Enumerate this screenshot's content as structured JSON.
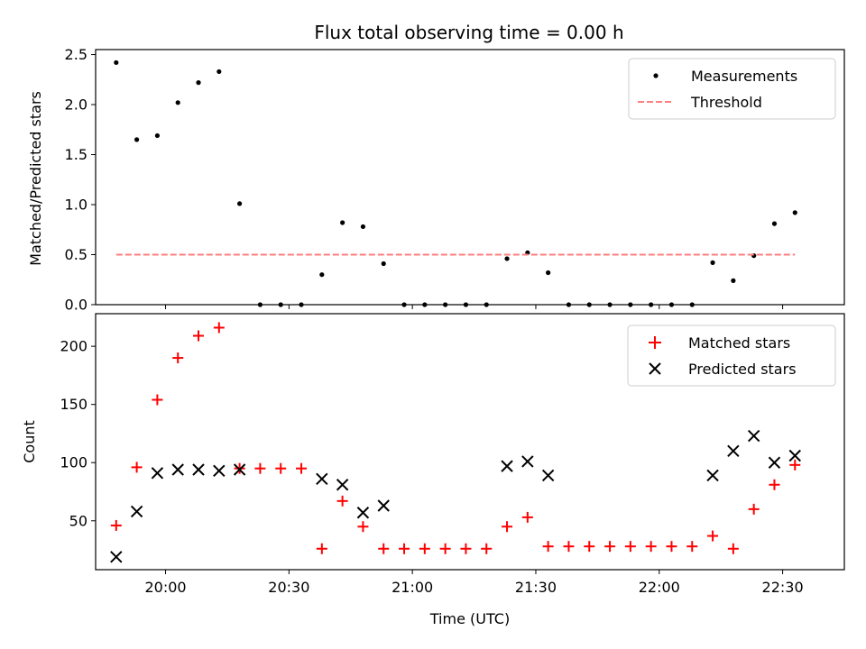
{
  "chart_data": [
    {
      "type": "scatter",
      "title": "Flux total observing time = 0.00 h",
      "ylabel": "Matched/Predicted stars",
      "xlabel": "",
      "xlim": [
        "19:43",
        "22:45"
      ],
      "ylim": [
        0,
        2.55
      ],
      "yticks": [
        0.0,
        0.5,
        1.0,
        1.5,
        2.0,
        2.5
      ],
      "ytick_labels": [
        "0.0",
        "0.5",
        "1.0",
        "1.5",
        "2.0",
        "2.5"
      ],
      "xticks": [
        "20:00",
        "20:30",
        "21:00",
        "21:30",
        "22:00",
        "22:30"
      ],
      "legend_position": "top-right",
      "series": [
        {
          "name": "Measurements",
          "kind": "points",
          "color": "#000000",
          "x": [
            "19:48",
            "19:53",
            "19:58",
            "20:03",
            "20:08",
            "20:13",
            "20:18",
            "20:23",
            "20:28",
            "20:33",
            "20:38",
            "20:43",
            "20:48",
            "20:53",
            "20:58",
            "21:03",
            "21:08",
            "21:13",
            "21:18",
            "21:23",
            "21:28",
            "21:33",
            "21:38",
            "21:43",
            "21:48",
            "21:53",
            "21:58",
            "22:03",
            "22:08",
            "22:13",
            "22:18",
            "22:23",
            "22:28",
            "22:33"
          ],
          "y": [
            2.42,
            1.65,
            1.69,
            2.02,
            2.22,
            2.33,
            1.01,
            0.0,
            0.0,
            0.0,
            0.3,
            0.82,
            0.78,
            0.41,
            0.0,
            0.0,
            0.0,
            0.0,
            0.0,
            0.46,
            0.52,
            0.32,
            0.0,
            0.0,
            0.0,
            0.0,
            0.0,
            0.0,
            0.0,
            0.42,
            0.24,
            0.49,
            0.81,
            0.92
          ]
        },
        {
          "name": "Threshold",
          "kind": "dashed-line",
          "color": "#ff7f7f",
          "x": [
            "19:48",
            "22:33"
          ],
          "y": [
            0.5,
            0.5
          ]
        }
      ]
    },
    {
      "type": "scatter",
      "title": "",
      "ylabel": "Count",
      "xlabel": "Time (UTC)",
      "xlim": [
        "19:43",
        "22:45"
      ],
      "ylim": [
        8,
        228
      ],
      "yticks": [
        50,
        100,
        150,
        200
      ],
      "ytick_labels": [
        "50",
        "100",
        "150",
        "200"
      ],
      "xticks": [
        "20:00",
        "20:30",
        "21:00",
        "21:30",
        "22:00",
        "22:30"
      ],
      "xtick_labels": [
        "20:00",
        "20:30",
        "21:00",
        "21:30",
        "22:00",
        "22:30"
      ],
      "legend_position": "top-right",
      "series": [
        {
          "name": "Matched stars",
          "marker": "plus",
          "color": "#ff0000",
          "x": [
            "19:48",
            "19:53",
            "19:58",
            "20:03",
            "20:08",
            "20:13",
            "20:18",
            "20:23",
            "20:28",
            "20:33",
            "20:38",
            "20:43",
            "20:48",
            "20:53",
            "20:58",
            "21:03",
            "21:08",
            "21:13",
            "21:18",
            "21:23",
            "21:28",
            "21:33",
            "21:38",
            "21:43",
            "21:48",
            "21:53",
            "21:58",
            "22:03",
            "22:08",
            "22:13",
            "22:18",
            "22:23",
            "22:28",
            "22:33"
          ],
          "y": [
            46,
            96,
            154,
            190,
            209,
            216,
            95,
            95,
            95,
            95,
            26,
            67,
            45,
            26,
            26,
            26,
            26,
            26,
            26,
            45,
            53,
            28,
            28,
            28,
            28,
            28,
            28,
            28,
            28,
            37,
            26,
            60,
            81,
            98
          ]
        },
        {
          "name": "Predicted stars",
          "marker": "x",
          "color": "#000000",
          "x": [
            "19:48",
            "19:53",
            "19:58",
            "20:03",
            "20:08",
            "20:13",
            "20:18",
            "20:38",
            "20:43",
            "20:48",
            "20:53",
            "21:23",
            "21:28",
            "21:33",
            "22:13",
            "22:18",
            "22:23",
            "22:28",
            "22:33"
          ],
          "y": [
            19,
            58,
            91,
            94,
            94,
            93,
            94,
            86,
            81,
            57,
            63,
            97,
            101,
            89,
            89,
            110,
            123,
            100,
            106
          ]
        }
      ]
    }
  ]
}
